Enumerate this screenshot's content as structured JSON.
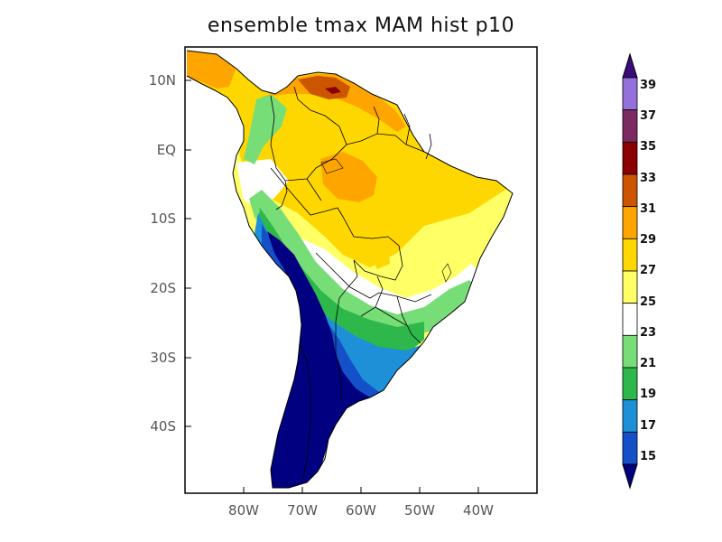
{
  "title": "ensemble tmax MAM hist p10",
  "axes": {
    "y_ticks": [
      "10N",
      "EQ",
      "10S",
      "20S",
      "30S",
      "40S"
    ],
    "x_ticks": [
      "80W",
      "70W",
      "60W",
      "50W",
      "40W"
    ],
    "lon_range": [
      -90,
      -30
    ],
    "lat_range": [
      -49,
      15
    ]
  },
  "colorbar": {
    "labels": [
      "39",
      "37",
      "35",
      "33",
      "31",
      "29",
      "27",
      "25",
      "23",
      "21",
      "19",
      "17",
      "15"
    ],
    "colors": [
      "#3d0a7a",
      "#9370db",
      "#7b2a62",
      "#8b0000",
      "#cc5500",
      "#ffa500",
      "#ffd700",
      "#ffff66",
      "#ffffff",
      "#77dd77",
      "#2eb84b",
      "#1e90d8",
      "#1450c8",
      "#000080"
    ]
  },
  "map": {
    "regions": [
      {
        "name": "central-america",
        "level": "29-31",
        "color": "#ffa500"
      },
      {
        "name": "northern-south-america",
        "level": "27-29",
        "color": "#ffd700"
      },
      {
        "name": "amazon-warm-core",
        "level": "29-31",
        "color": "#ffa500"
      },
      {
        "name": "venezuela-hot-spot",
        "level": "33-35",
        "color": "#8b0000"
      },
      {
        "name": "brazil-interior",
        "level": "25-27",
        "color": "#ffff66"
      },
      {
        "name": "andes-cold",
        "level": "<15",
        "color": "#000080"
      },
      {
        "name": "patagonia-cold",
        "level": "<15",
        "color": "#000080"
      },
      {
        "name": "southern-cone-bands",
        "level": "17-23",
        "color": "#1e90d8"
      }
    ]
  }
}
